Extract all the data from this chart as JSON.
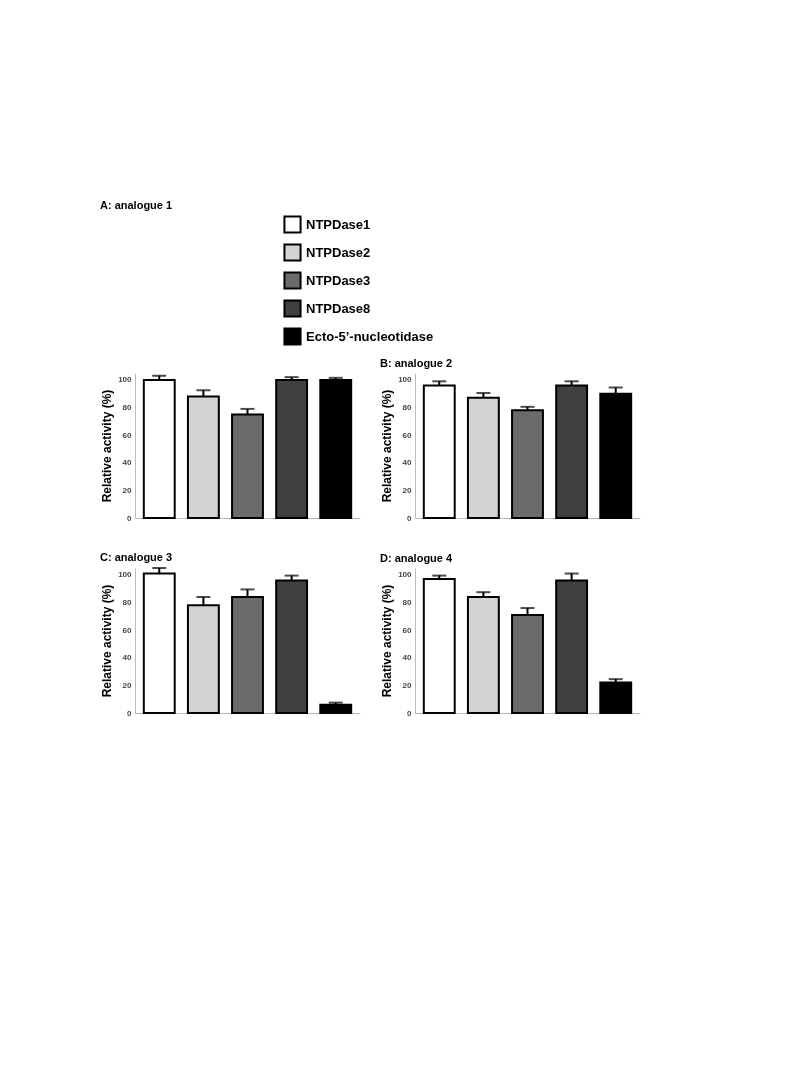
{
  "chart_data": [
    {
      "type": "bar",
      "title": "A: analogue 1",
      "ylabel": "Relative activity (%)",
      "categories": [
        null
      ],
      "ylim": [
        0,
        105
      ],
      "yticks": [
        0,
        20,
        40,
        60,
        80,
        100
      ],
      "legend": "top",
      "series": [
        {
          "name": "NTPDase1",
          "color": "#ffffff",
          "values": [
            100
          ],
          "errors": [
            3
          ]
        },
        {
          "name": "NTPDase2",
          "color": "#d3d3d3",
          "values": [
            88
          ],
          "errors": [
            4.5
          ]
        },
        {
          "name": "NTPDase3",
          "color": "#6b6b6b",
          "values": [
            75
          ],
          "errors": [
            4
          ]
        },
        {
          "name": "NTPDase8",
          "color": "#404040",
          "values": [
            100
          ],
          "errors": [
            2
          ]
        },
        {
          "name": "Ecto-5’-nucleotidase",
          "color": "#000000",
          "values": [
            100
          ],
          "errors": [
            1.5
          ]
        }
      ]
    },
    {
      "type": "bar",
      "title": "B: analogue 2",
      "ylabel": "Relative activity (%)",
      "categories": [
        null
      ],
      "ylim": [
        0,
        105
      ],
      "yticks": [
        0,
        20,
        40,
        60,
        80,
        100
      ],
      "series": [
        {
          "color": "#ffffff",
          "values": [
            96
          ],
          "errors": [
            3
          ]
        },
        {
          "color": "#d3d3d3",
          "values": [
            87
          ],
          "errors": [
            3.5
          ]
        },
        {
          "color": "#6b6b6b",
          "values": [
            78
          ],
          "errors": [
            2.5
          ]
        },
        {
          "color": "#404040",
          "values": [
            96
          ],
          "errors": [
            3
          ]
        },
        {
          "color": "#000000",
          "values": [
            90
          ],
          "errors": [
            4.5
          ]
        }
      ]
    },
    {
      "type": "bar",
      "title": "C: analogue 3",
      "ylabel": "Relative activity (%)",
      "categories": [
        null
      ],
      "ylim": [
        0,
        105
      ],
      "yticks": [
        0,
        20,
        40,
        60,
        80,
        100
      ],
      "series": [
        {
          "color": "#ffffff",
          "values": [
            101
          ],
          "errors": [
            4
          ]
        },
        {
          "color": "#d3d3d3",
          "values": [
            78
          ],
          "errors": [
            6
          ]
        },
        {
          "color": "#6b6b6b",
          "values": [
            84
          ],
          "errors": [
            5.5
          ]
        },
        {
          "color": "#404040",
          "values": [
            96
          ],
          "errors": [
            3.5
          ]
        },
        {
          "color": "#000000",
          "values": [
            6
          ],
          "errors": [
            1.5
          ]
        }
      ]
    },
    {
      "type": "bar",
      "title": "D: analogue 4",
      "ylabel": "Relative activity (%)",
      "categories": [
        null
      ],
      "ylim": [
        0,
        105
      ],
      "yticks": [
        0,
        20,
        40,
        60,
        80,
        100
      ],
      "series": [
        {
          "color": "#ffffff",
          "values": [
            97
          ],
          "errors": [
            2.5
          ]
        },
        {
          "color": "#d3d3d3",
          "values": [
            84
          ],
          "errors": [
            3.5
          ]
        },
        {
          "color": "#6b6b6b",
          "values": [
            71
          ],
          "errors": [
            5
          ]
        },
        {
          "color": "#404040",
          "values": [
            96
          ],
          "errors": [
            5
          ]
        },
        {
          "color": "#000000",
          "values": [
            22
          ],
          "errors": [
            2.5
          ]
        }
      ]
    }
  ]
}
